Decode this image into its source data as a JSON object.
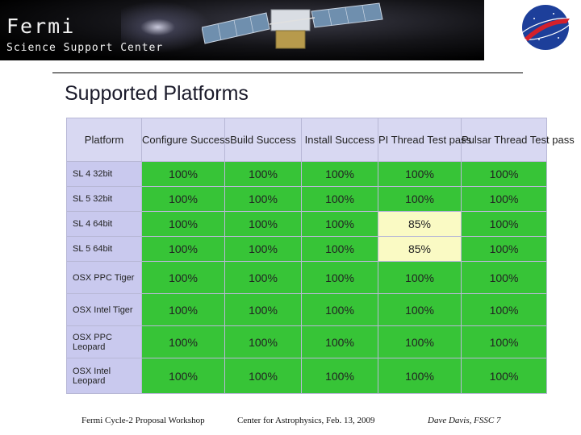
{
  "header": {
    "brand_title": "Fermi",
    "brand_subtitle": "Science Support Center"
  },
  "slide": {
    "title": "Supported Platforms"
  },
  "table": {
    "columns": [
      "Platform",
      "Configure Success",
      "Build Success",
      "Install Success",
      "PI Thread Test pass",
      "Pulsar Thread Test pass"
    ],
    "rows": [
      {
        "platform": "SL 4 32bit",
        "values": [
          "100%",
          "100%",
          "100%",
          "100%",
          "100%"
        ]
      },
      {
        "platform": "SL 5 32bit",
        "values": [
          "100%",
          "100%",
          "100%",
          "100%",
          "100%"
        ]
      },
      {
        "platform": "SL 4 64bit",
        "values": [
          "100%",
          "100%",
          "100%",
          "85%",
          "100%"
        ]
      },
      {
        "platform": "SL 5 64bit",
        "values": [
          "100%",
          "100%",
          "100%",
          "85%",
          "100%"
        ]
      },
      {
        "platform": "OSX PPC Tiger",
        "values": [
          "100%",
          "100%",
          "100%",
          "100%",
          "100%"
        ]
      },
      {
        "platform": "OSX Intel Tiger",
        "values": [
          "100%",
          "100%",
          "100%",
          "100%",
          "100%"
        ]
      },
      {
        "platform": "OSX PPC Leopard",
        "values": [
          "100%",
          "100%",
          "100%",
          "100%",
          "100%"
        ]
      },
      {
        "platform": "OSX Intel Leopard",
        "values": [
          "100%",
          "100%",
          "100%",
          "100%",
          "100%"
        ]
      }
    ],
    "colors": {
      "pass": "#37c437",
      "partial": "#fafac4",
      "platform_cell": "#c9c9ee",
      "header_cell": "#d8d8f2"
    }
  },
  "footer": {
    "left": "Fermi Cycle-2 Proposal Workshop",
    "center": "Center for Astrophysics, Feb. 13, 2009",
    "right": "Dave Davis, FSSC",
    "page_number": "7"
  }
}
